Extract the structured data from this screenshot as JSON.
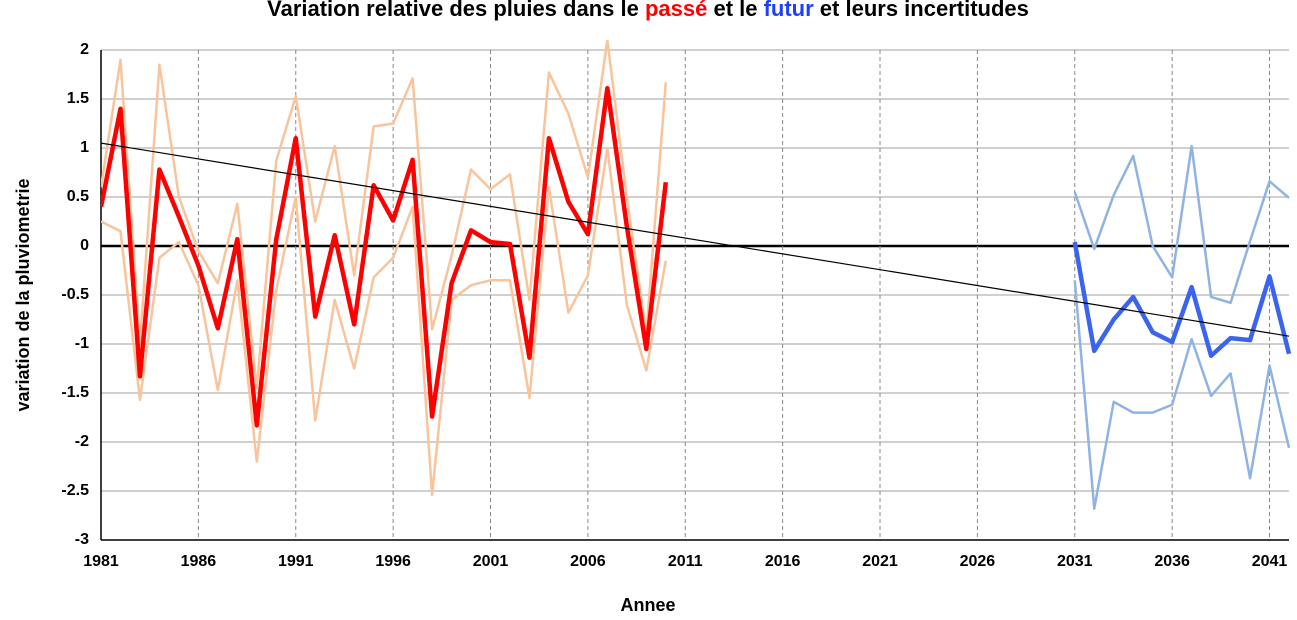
{
  "chart_data": {
    "type": "line",
    "title": [
      {
        "text": "Variation relative des pluies dans le ",
        "color": "#000000"
      },
      {
        "text": "passé",
        "color": "#ff0000"
      },
      {
        "text": " et le ",
        "color": "#000000"
      },
      {
        "text": "futur",
        "color": "#1f3fff"
      },
      {
        "text": " et leurs incertitudes",
        "color": "#000000"
      }
    ],
    "xlabel": "Annee",
    "ylabel": "variation de la pluviometrie",
    "xlim": [
      1981,
      2042
    ],
    "ylim": [
      -3,
      2
    ],
    "xticks": [
      1981,
      1986,
      1991,
      1996,
      2001,
      2006,
      2011,
      2016,
      2021,
      2026,
      2031,
      2036,
      2041
    ],
    "yticks": [
      -3,
      -2.5,
      -2,
      -1.5,
      -1,
      -0.5,
      0,
      0.5,
      1,
      1.5,
      2
    ],
    "grid": true,
    "series": [
      {
        "color": "#f8c49c",
        "width": 2.5,
        "x": [
          1981,
          1982,
          1983,
          1984,
          1985,
          1986,
          1987,
          1988,
          1989,
          1990,
          1991,
          1992,
          1993,
          1994,
          1995,
          1996,
          1997,
          1998,
          1999,
          2000,
          2001,
          2002,
          2003,
          2004,
          2005,
          2006,
          2007,
          2008,
          2009,
          2010
        ],
        "values": [
          0.6,
          1.9,
          -1.0,
          1.85,
          0.5,
          -0.05,
          -0.38,
          0.43,
          -1.45,
          0.87,
          1.53,
          0.25,
          1.02,
          -0.3,
          1.22,
          1.25,
          1.71,
          -0.85,
          -0.1,
          0.78,
          0.58,
          0.73,
          -0.55,
          1.77,
          1.35,
          0.7,
          2.1,
          0.5,
          -0.9,
          1.67
        ]
      },
      {
        "color": "#f8c49c",
        "width": 2.5,
        "x": [
          1981,
          1982,
          1983,
          1984,
          1985,
          1986,
          1987,
          1988,
          1989,
          1990,
          1991,
          1992,
          1993,
          1994,
          1995,
          1996,
          1997,
          1998,
          1999,
          2000,
          2001,
          2002,
          2003,
          2004,
          2005,
          2006,
          2007,
          2008,
          2009,
          2010
        ],
        "values": [
          0.25,
          0.15,
          -1.57,
          -0.12,
          0.04,
          -0.4,
          -1.47,
          -0.35,
          -2.2,
          -0.45,
          0.5,
          -1.78,
          -0.55,
          -1.25,
          -0.32,
          -0.12,
          0.4,
          -2.54,
          -0.55,
          -0.4,
          -0.35,
          -0.35,
          -1.55,
          0.6,
          -0.68,
          -0.3,
          1.0,
          -0.6,
          -1.27,
          -0.15
        ]
      },
      {
        "color": "#ff0000",
        "width": 4.5,
        "x": [
          1981,
          1982,
          1983,
          1984,
          1985,
          1986,
          1987,
          1988,
          1989,
          1990,
          1991,
          1992,
          1993,
          1994,
          1995,
          1996,
          1997,
          1998,
          1999,
          2000,
          2001,
          2002,
          2003,
          2004,
          2005,
          2006,
          2007,
          2008,
          2009,
          2010
        ],
        "values": [
          0.4,
          1.4,
          -1.33,
          0.78,
          0.3,
          -0.2,
          -0.84,
          0.07,
          -1.83,
          0.07,
          1.1,
          -0.72,
          0.11,
          -0.8,
          0.62,
          0.26,
          0.88,
          -1.74,
          -0.38,
          0.16,
          0.04,
          0.02,
          -1.14,
          1.1,
          0.45,
          0.12,
          1.61,
          0.2,
          -1.05,
          0.65
        ]
      },
      {
        "color": "#8fb3e3",
        "width": 2.5,
        "x": [
          2031,
          2032,
          2033,
          2034,
          2035,
          2036,
          2037,
          2038,
          2039,
          2040,
          2041,
          2042
        ],
        "values": [
          0.55,
          -0.03,
          0.52,
          0.92,
          0.0,
          -0.32,
          1.02,
          -0.52,
          -0.58,
          0.05,
          0.66,
          0.49
        ]
      },
      {
        "color": "#8fb3e3",
        "width": 2.5,
        "x": [
          2031,
          2032,
          2033,
          2034,
          2035,
          2036,
          2037,
          2038,
          2039,
          2040,
          2041,
          2042
        ],
        "values": [
          -0.35,
          -2.68,
          -1.59,
          -1.7,
          -1.7,
          -1.62,
          -0.95,
          -1.53,
          -1.3,
          -2.37,
          -1.22,
          -2.06
        ]
      },
      {
        "color": "#3a63f0",
        "width": 4.5,
        "x": [
          2031,
          2032,
          2033,
          2034,
          2035,
          2036,
          2037,
          2038,
          2039,
          2040,
          2041,
          2042
        ],
        "values": [
          0.04,
          -1.07,
          -0.75,
          -0.52,
          -0.88,
          -0.98,
          -0.42,
          -1.12,
          -0.94,
          -0.96,
          -0.31,
          -1.1
        ]
      },
      {
        "color": "#000000",
        "width": 1.2,
        "x": [
          1981,
          2042
        ],
        "values": [
          1.05,
          -0.92
        ]
      }
    ]
  }
}
